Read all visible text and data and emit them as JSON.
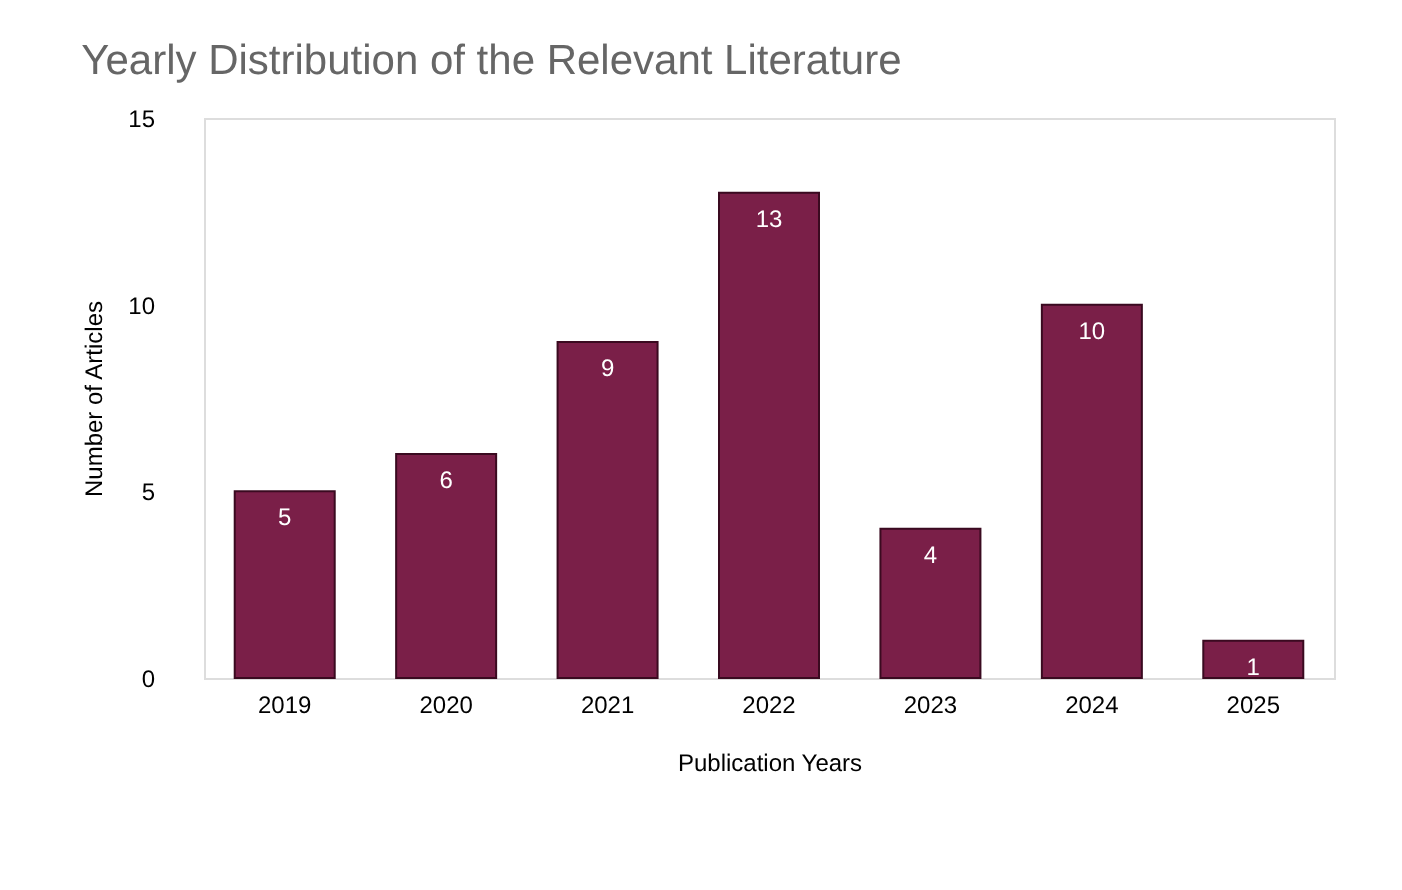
{
  "chart_data": {
    "type": "bar",
    "title": "Yearly Distribution of the Relevant Literature",
    "xlabel": "Publication Years",
    "ylabel": "Number of Articles",
    "categories": [
      "2019",
      "2020",
      "2021",
      "2022",
      "2023",
      "2024",
      "2025"
    ],
    "values": [
      5,
      6,
      9,
      13,
      4,
      10,
      1
    ],
    "color": "#7a1f48",
    "ylim": [
      0,
      15
    ],
    "yticks": [
      0,
      5,
      10,
      15
    ],
    "grid": false,
    "data_labels": true
  }
}
